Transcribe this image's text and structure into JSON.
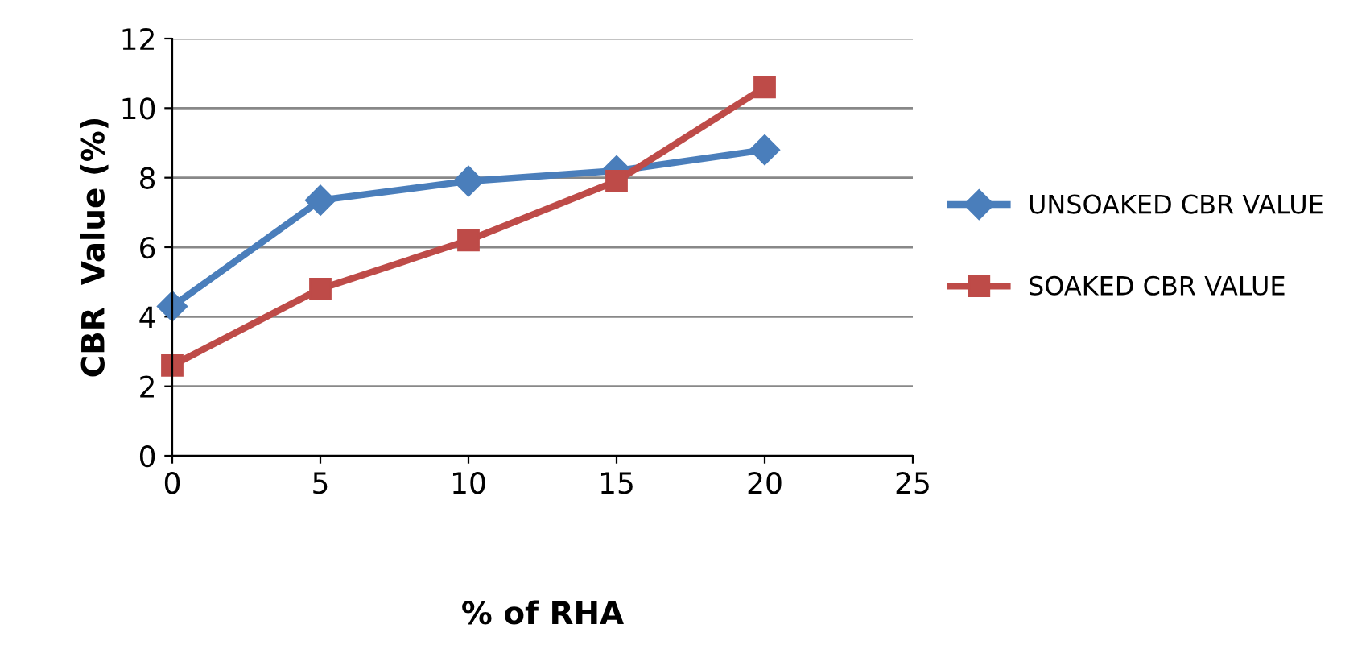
{
  "chart_data": {
    "type": "line",
    "xlabel": "% of RHA",
    "ylabel": "CBR  Value (%)",
    "x": [
      0,
      5,
      10,
      15,
      20
    ],
    "series": [
      {
        "name": "UNSOAKED CBR VALUE",
        "color": "#4a7ebb",
        "marker": "diamond",
        "values": [
          4.3,
          7.35,
          7.9,
          8.2,
          8.8
        ]
      },
      {
        "name": "SOAKED CBR VALUE",
        "color": "#be4b48",
        "marker": "square",
        "values": [
          2.6,
          4.8,
          6.2,
          7.9,
          10.6
        ]
      }
    ],
    "xlim": [
      0,
      25
    ],
    "xticks": [
      0,
      5,
      10,
      15,
      20,
      25
    ],
    "ylim": [
      0,
      12
    ],
    "yticks": [
      0,
      2,
      4,
      6,
      8,
      10,
      12
    ],
    "grid": "y",
    "legend": "right",
    "line_style": "solid"
  }
}
